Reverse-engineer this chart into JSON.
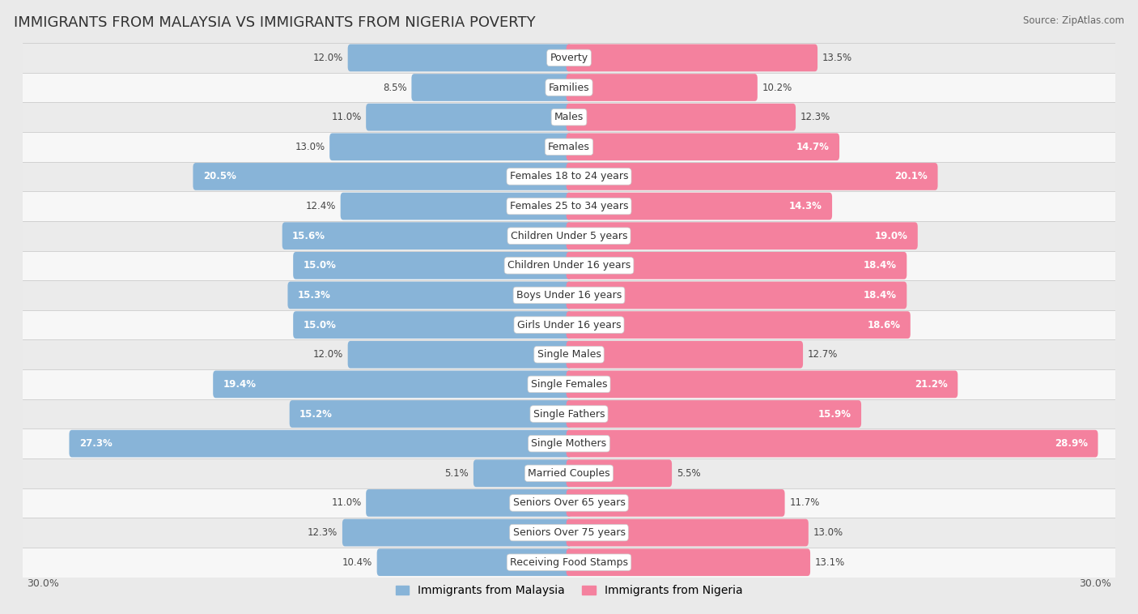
{
  "title": "IMMIGRANTS FROM MALAYSIA VS IMMIGRANTS FROM NIGERIA POVERTY",
  "source": "Source: ZipAtlas.com",
  "categories": [
    "Poverty",
    "Families",
    "Males",
    "Females",
    "Females 18 to 24 years",
    "Females 25 to 34 years",
    "Children Under 5 years",
    "Children Under 16 years",
    "Boys Under 16 years",
    "Girls Under 16 years",
    "Single Males",
    "Single Females",
    "Single Fathers",
    "Single Mothers",
    "Married Couples",
    "Seniors Over 65 years",
    "Seniors Over 75 years",
    "Receiving Food Stamps"
  ],
  "malaysia_values": [
    12.0,
    8.5,
    11.0,
    13.0,
    20.5,
    12.4,
    15.6,
    15.0,
    15.3,
    15.0,
    12.0,
    19.4,
    15.2,
    27.3,
    5.1,
    11.0,
    12.3,
    10.4
  ],
  "nigeria_values": [
    13.5,
    10.2,
    12.3,
    14.7,
    20.1,
    14.3,
    19.0,
    18.4,
    18.4,
    18.6,
    12.7,
    21.2,
    15.9,
    28.9,
    5.5,
    11.7,
    13.0,
    13.1
  ],
  "malaysia_color": "#88b4d8",
  "nigeria_color": "#f4819e",
  "malaysia_label": "Immigrants from Malaysia",
  "nigeria_label": "Immigrants from Nigeria",
  "background_color": "#eaeaea",
  "row_color_even": "#f7f7f7",
  "row_color_odd": "#ebebeb",
  "axis_limit": 30.0,
  "label_fontsize": 9.0,
  "value_fontsize": 8.5,
  "title_fontsize": 13,
  "inside_threshold_malaysia": 14.0,
  "inside_threshold_nigeria": 14.0
}
